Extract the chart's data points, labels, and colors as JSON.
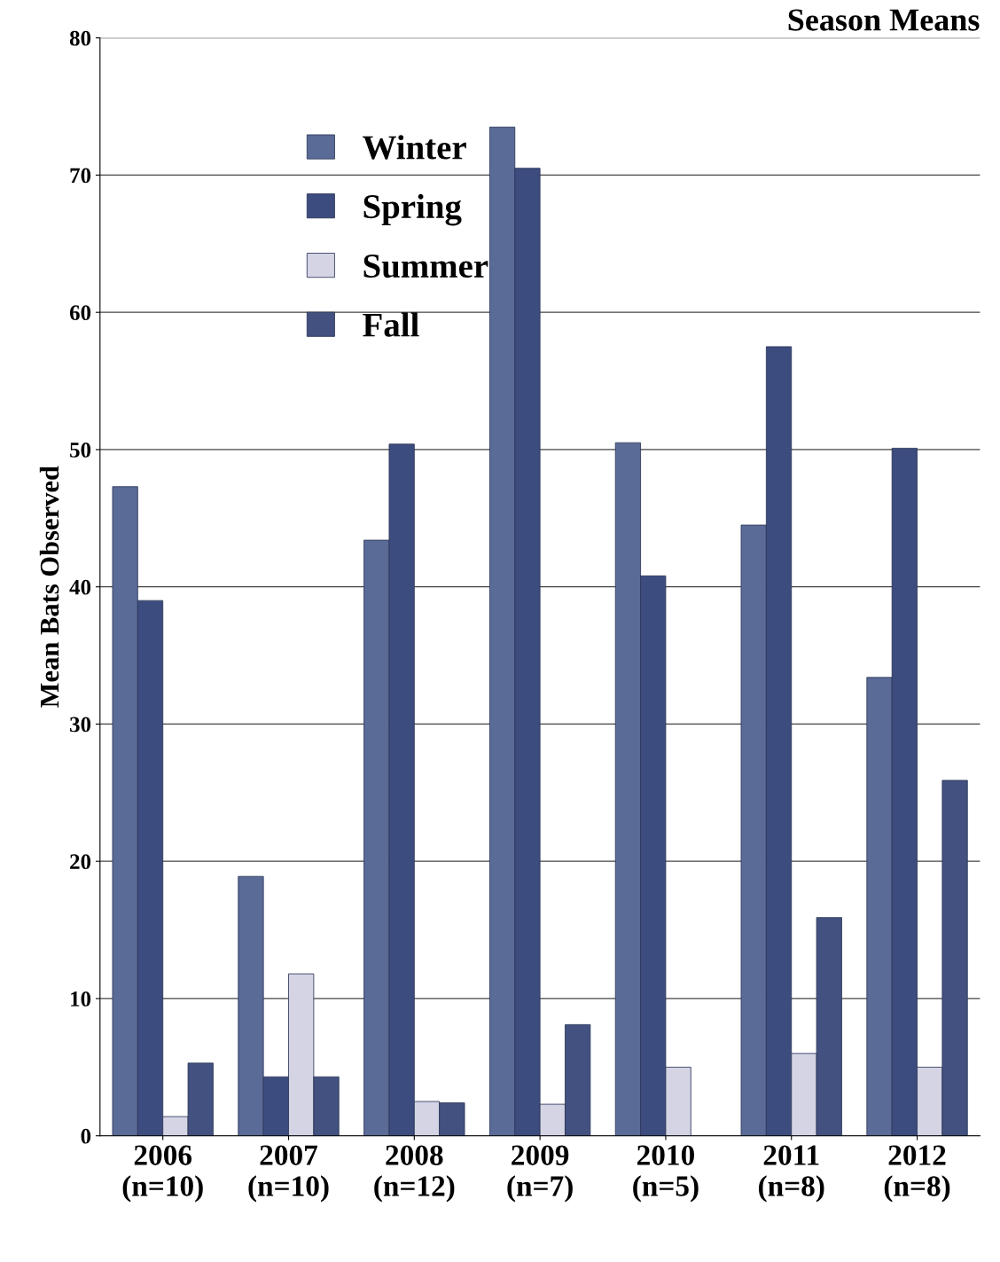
{
  "chart_data": {
    "type": "bar",
    "title": "Season Means",
    "ylabel": "Mean Bats Observed",
    "categories": [
      "2006\n(n=10)",
      "2007\n(n=10)",
      "2008\n(n=12)",
      "2009\n(n=7)",
      "2010\n(n=5)",
      "2011\n(n=8)",
      "2012\n(n=8)"
    ],
    "series": [
      {
        "name": "Winter",
        "color": "#5b6b98",
        "values": [
          47.3,
          18.9,
          43.4,
          73.5,
          50.5,
          44.5,
          33.4
        ]
      },
      {
        "name": "Spring",
        "color": "#3d4c7e",
        "values": [
          39.0,
          4.3,
          50.4,
          70.5,
          40.8,
          57.5,
          50.1
        ]
      },
      {
        "name": "Summer",
        "color": "#d4d4e4",
        "values": [
          1.4,
          11.8,
          2.5,
          2.3,
          5.0,
          6.0,
          5.0
        ]
      },
      {
        "name": "Fall",
        "color": "#42517f",
        "values": [
          5.3,
          4.3,
          2.4,
          8.1,
          null,
          15.9,
          25.9
        ]
      }
    ],
    "ylim": [
      0,
      80
    ],
    "yticks": [
      0,
      10,
      20,
      30,
      40,
      50,
      60,
      70,
      80
    ],
    "grid": "y",
    "legend": "top left"
  }
}
